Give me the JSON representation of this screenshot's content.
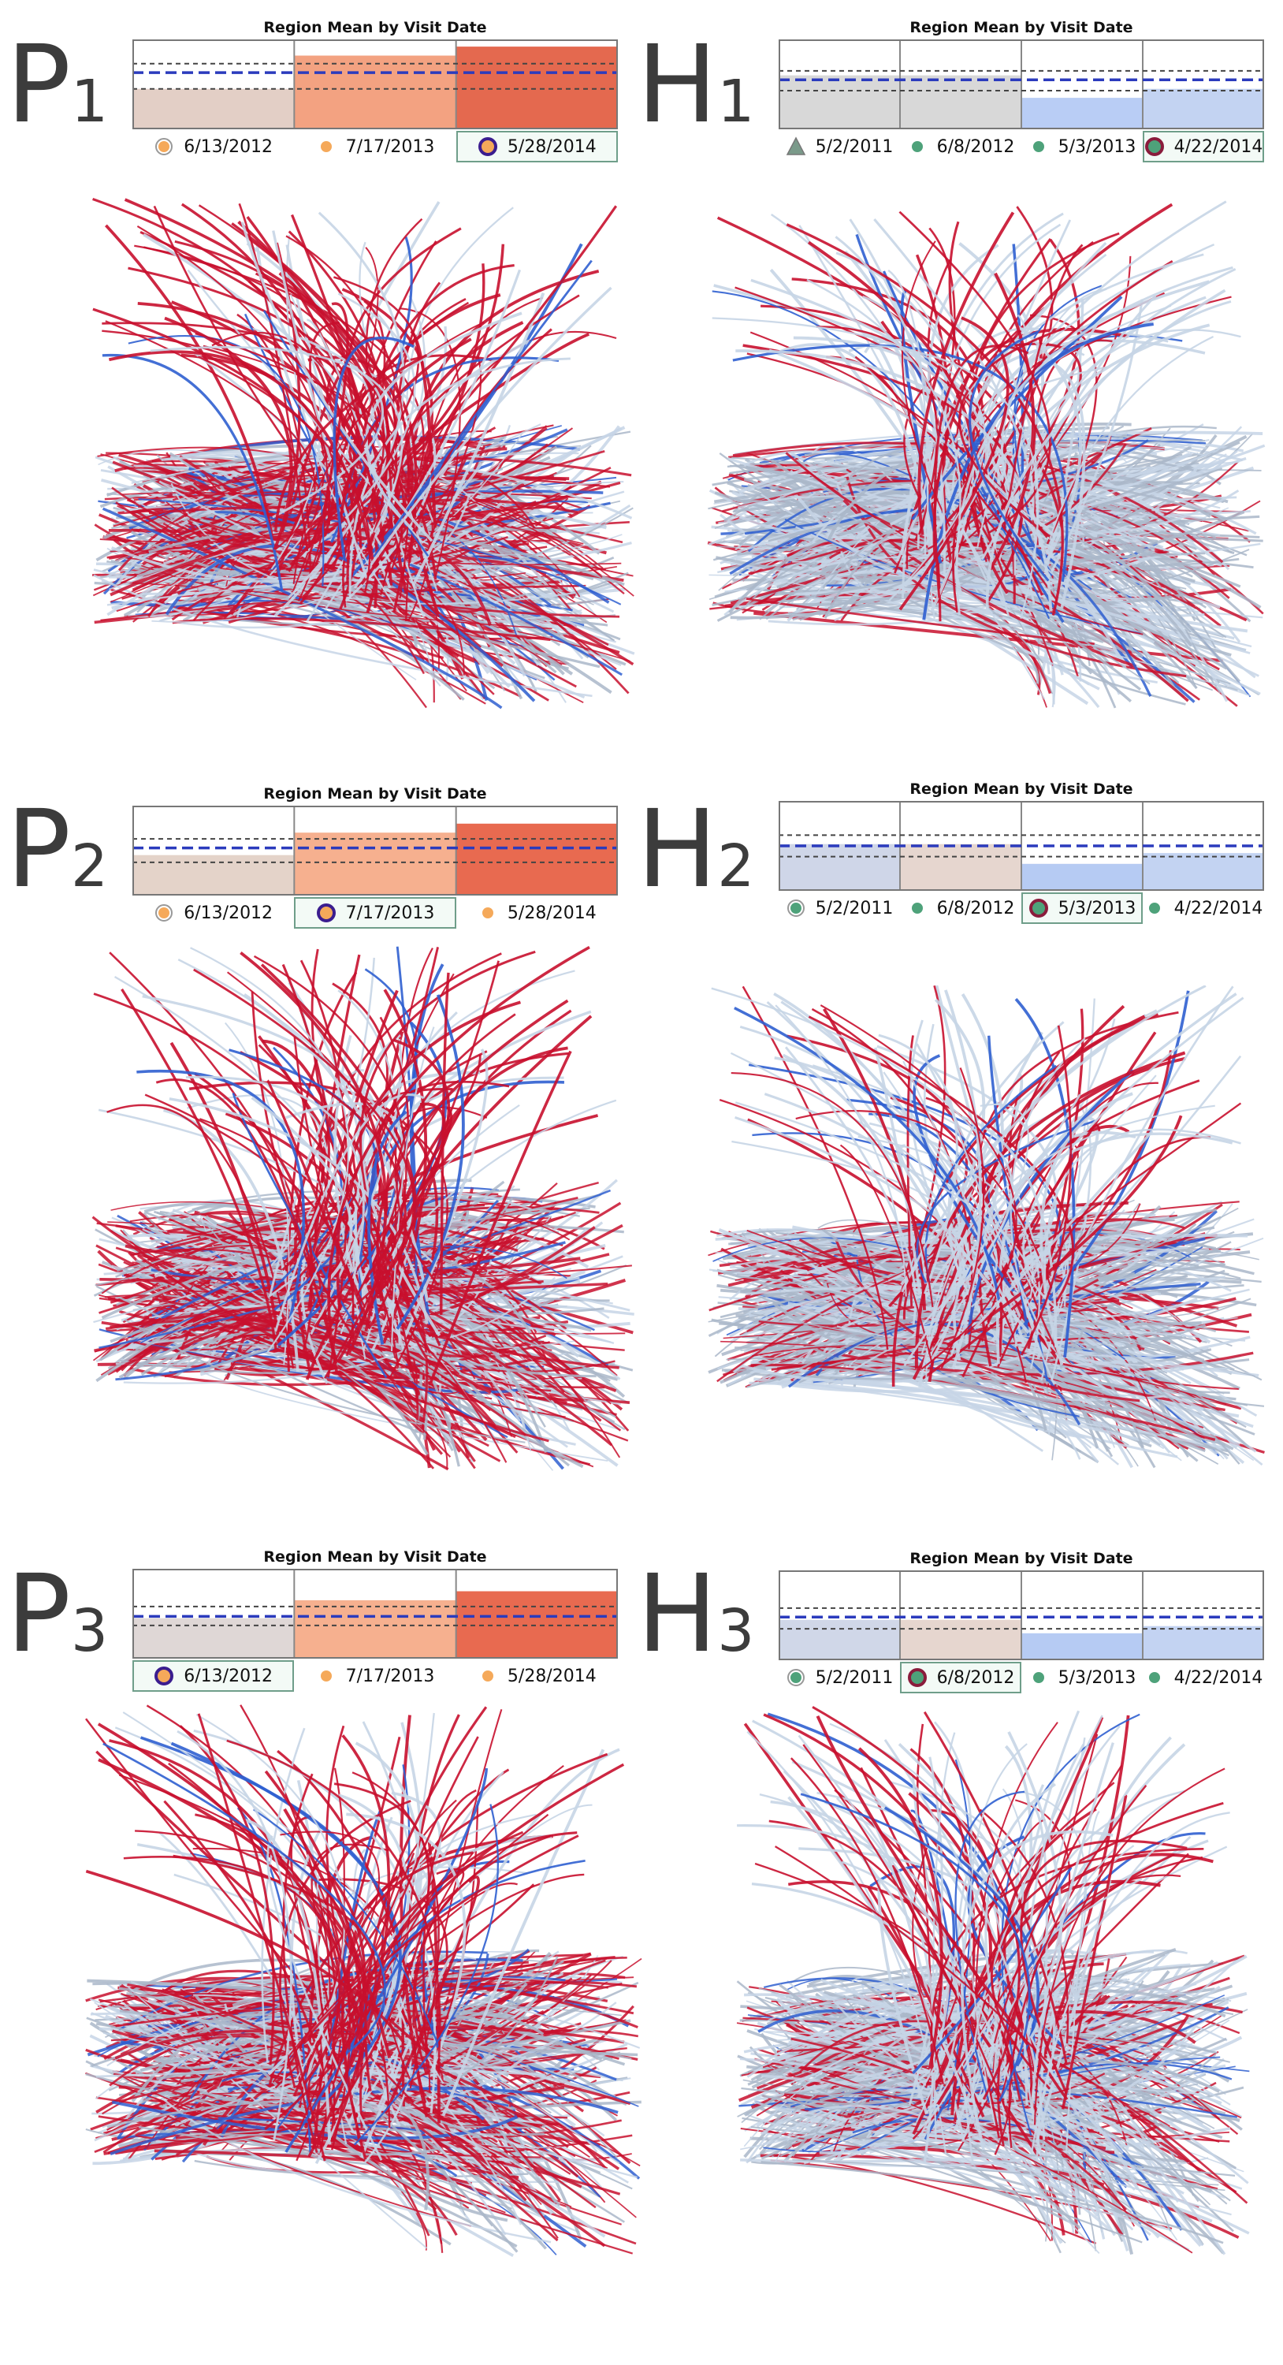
{
  "panels": [
    {
      "id": "P1",
      "letter": "P",
      "index": "1",
      "chart_title": "Region Mean by Visit Date",
      "dates": [
        "6/13/2012",
        "7/17/2013",
        "5/28/2014"
      ],
      "selected_index": 2,
      "marker_styles": [
        "orange-ring",
        "orange-dot",
        "orange-selected"
      ]
    },
    {
      "id": "H1",
      "letter": "H",
      "index": "1",
      "chart_title": "Region Mean by Visit Date",
      "dates": [
        "5/2/2011",
        "6/8/2012",
        "5/3/2013",
        "4/22/2014"
      ],
      "selected_index": 3,
      "marker_styles": [
        "gray-triangle",
        "green-dot",
        "green-dot",
        "green-selected"
      ]
    },
    {
      "id": "P2",
      "letter": "P",
      "index": "2",
      "chart_title": "Region Mean by Visit Date",
      "dates": [
        "6/13/2012",
        "7/17/2013",
        "5/28/2014"
      ],
      "selected_index": 1,
      "marker_styles": [
        "orange-ring",
        "orange-selected",
        "orange-dot"
      ]
    },
    {
      "id": "H2",
      "letter": "H",
      "index": "2",
      "chart_title": "Region Mean by Visit Date",
      "dates": [
        "5/2/2011",
        "6/8/2012",
        "5/3/2013",
        "4/22/2014"
      ],
      "selected_index": 2,
      "marker_styles": [
        "green-ring",
        "green-dot",
        "green-selected",
        "green-dot"
      ]
    },
    {
      "id": "P3",
      "letter": "P",
      "index": "3",
      "chart_title": "Region Mean by Visit Date",
      "dates": [
        "6/13/2012",
        "7/17/2013",
        "5/28/2014"
      ],
      "selected_index": 0,
      "marker_styles": [
        "orange-selected",
        "orange-dot",
        "orange-dot"
      ]
    },
    {
      "id": "H3",
      "letter": "H",
      "index": "3",
      "chart_title": "Region Mean by Visit Date",
      "dates": [
        "5/2/2011",
        "6/8/2012",
        "5/3/2013",
        "4/22/2014"
      ],
      "selected_index": 1,
      "marker_styles": [
        "green-ring",
        "green-selected",
        "green-dot",
        "green-dot"
      ]
    }
  ],
  "chart_data": [
    {
      "type": "bar",
      "title": "Region Mean by Visit Date",
      "categories": [
        "6/13/2012",
        "7/17/2013",
        "5/28/2014"
      ],
      "values": [
        0.45,
        0.82,
        0.92
      ],
      "bar_colors": [
        "#e3cfc6",
        "#f3a281",
        "#e4694f"
      ],
      "reference_lines": {
        "mean": 0.63,
        "upper": 0.73,
        "lower": 0.45
      },
      "ylim": [
        0,
        1
      ]
    },
    {
      "type": "bar",
      "title": "Region Mean by Visit Date",
      "categories": [
        "5/2/2011",
        "6/8/2012",
        "5/3/2013",
        "4/22/2014"
      ],
      "values": [
        0.6,
        0.6,
        0.35,
        0.45
      ],
      "bar_colors": [
        "#d8d8d8",
        "#d8d8d8",
        "#b9cdf5",
        "#c3d3f2"
      ],
      "reference_lines": {
        "mean": 0.55,
        "upper": 0.65,
        "lower": 0.43
      },
      "ylim": [
        0,
        1
      ]
    },
    {
      "type": "bar",
      "title": "Region Mean by Visit Date",
      "categories": [
        "6/13/2012",
        "7/17/2013",
        "5/28/2014"
      ],
      "values": [
        0.45,
        0.7,
        0.8
      ],
      "bar_colors": [
        "#e4d3c9",
        "#f6b08f",
        "#e86a50"
      ],
      "reference_lines": {
        "mean": 0.53,
        "upper": 0.63,
        "lower": 0.37
      },
      "ylim": [
        0,
        1
      ]
    },
    {
      "type": "bar",
      "title": "Region Mean by Visit Date",
      "categories": [
        "5/2/2011",
        "6/8/2012",
        "5/3/2013",
        "4/22/2014"
      ],
      "values": [
        0.52,
        0.52,
        0.3,
        0.42
      ],
      "bar_colors": [
        "#cfd6e8",
        "#e6d6cf",
        "#b6cbf3",
        "#c3d3f2"
      ],
      "reference_lines": {
        "mean": 0.5,
        "upper": 0.62,
        "lower": 0.38
      },
      "ylim": [
        0,
        1
      ]
    },
    {
      "type": "bar",
      "title": "Region Mean by Visit Date",
      "categories": [
        "6/13/2012",
        "7/17/2013",
        "5/28/2014"
      ],
      "values": [
        0.45,
        0.65,
        0.75
      ],
      "bar_colors": [
        "#dfd7d6",
        "#f6b08f",
        "#e86a50"
      ],
      "reference_lines": {
        "mean": 0.47,
        "upper": 0.58,
        "lower": 0.37
      },
      "ylim": [
        0,
        1
      ]
    },
    {
      "type": "bar",
      "title": "Region Mean by Visit Date",
      "categories": [
        "5/2/2011",
        "6/8/2012",
        "5/3/2013",
        "4/22/2014"
      ],
      "values": [
        0.45,
        0.45,
        0.3,
        0.38
      ],
      "bar_colors": [
        "#d0d7e8",
        "#e6d6cf",
        "#b6cbf3",
        "#c3d3f2"
      ],
      "reference_lines": {
        "mean": 0.48,
        "upper": 0.58,
        "lower": 0.35
      },
      "ylim": [
        0,
        1
      ]
    }
  ],
  "colors": {
    "positive": "#c8102e",
    "negative": "#2f5fd0",
    "neutral": "#c7d5e6",
    "mean_line": "#2b3bbd"
  }
}
